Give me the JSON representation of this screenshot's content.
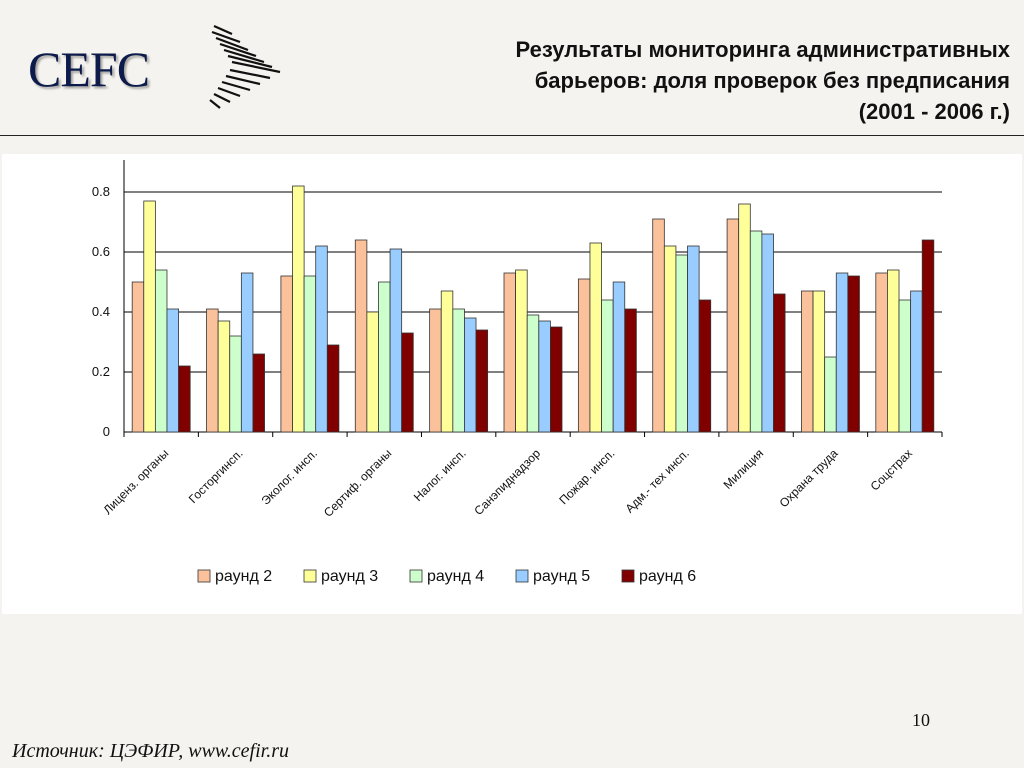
{
  "header": {
    "logo_text": "CEFC",
    "title_lines": [
      "Результаты мониторинга административных",
      "барьеров: доля проверок без предписания",
      "(2001 - 2006 г.)"
    ]
  },
  "chart_data": {
    "type": "bar",
    "categories": [
      "Лиценз. органы",
      "Госторгинсп.",
      "Эколог. инсп.",
      "Сертиф. органы",
      "Налог. инсп.",
      "Санэпиднадзор",
      "Пожар. инсп.",
      "Адм.- тех инсп.",
      "Милиция",
      "Охрана труда",
      "Соцстрах"
    ],
    "series": [
      {
        "name": "раунд 2",
        "color": "#fbc19b",
        "values": [
          0.5,
          0.41,
          0.52,
          0.64,
          0.41,
          0.53,
          0.51,
          0.71,
          0.71,
          0.47,
          0.53
        ]
      },
      {
        "name": "раунд 3",
        "color": "#ffff99",
        "values": [
          0.77,
          0.37,
          0.82,
          0.4,
          0.47,
          0.54,
          0.63,
          0.62,
          0.76,
          0.47,
          0.54
        ]
      },
      {
        "name": "раунд 4",
        "color": "#ccffcc",
        "values": [
          0.54,
          0.32,
          0.52,
          0.5,
          0.41,
          0.39,
          0.44,
          0.59,
          0.67,
          0.25,
          0.44
        ]
      },
      {
        "name": "раунд 5",
        "color": "#99ccff",
        "values": [
          0.41,
          0.53,
          0.62,
          0.61,
          0.38,
          0.37,
          0.5,
          0.62,
          0.66,
          0.53,
          0.47
        ]
      },
      {
        "name": "раунд 6",
        "color": "#800000",
        "values": [
          0.22,
          0.26,
          0.29,
          0.33,
          0.34,
          0.35,
          0.41,
          0.44,
          0.46,
          0.52,
          0.64
        ]
      }
    ],
    "yticks": [
      "0",
      "0.2",
      "0.4",
      "0.6",
      "0.8"
    ],
    "ylim": [
      0,
      0.9
    ],
    "grid": true,
    "legend_position": "bottom"
  },
  "footer": {
    "page_number": "10",
    "source": "Источник: ЦЭФИР, www.cefir.ru"
  }
}
